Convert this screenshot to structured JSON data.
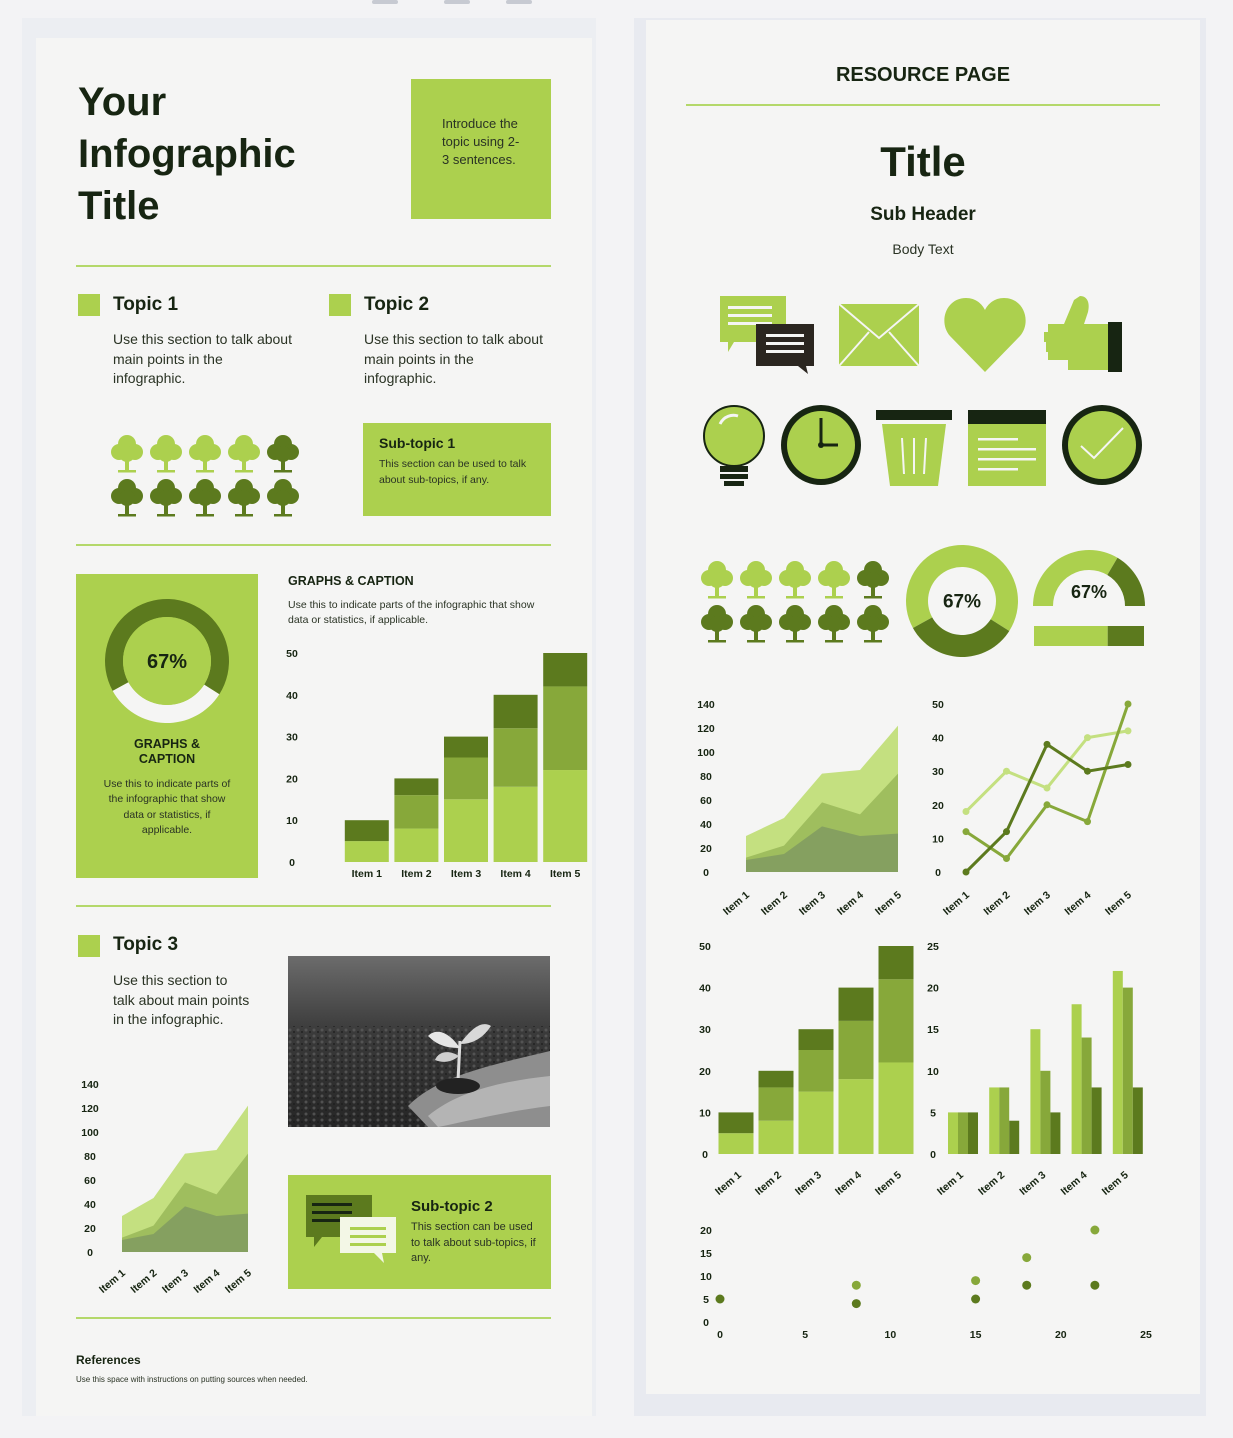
{
  "colors": {
    "light": "#acd04e",
    "mid": "#87a83a",
    "dark": "#5c7a1e",
    "darkest": "#172512",
    "pale": "#c4e080"
  },
  "left": {
    "title_lines": [
      "Your",
      "Infographic",
      "Title"
    ],
    "intro": "Introduce the topic using 2-3 sentences.",
    "topic1": {
      "title": "Topic 1",
      "text": "Use this section to talk about main points in the infographic."
    },
    "topic2": {
      "title": "Topic 2",
      "text": "Use this section to talk about main points in the infographic."
    },
    "subtopic1": {
      "title": "Sub-topic 1",
      "text": "This section can be used to talk about sub-topics, if any."
    },
    "graphs_box": {
      "percent": "67%",
      "title": "GRAPHS & CAPTION",
      "text": "Use this to indicate parts of the infographic that show data or statistics, if applicable."
    },
    "graphs_caption": {
      "title": "GRAPHS & CAPTION",
      "text": "Use this to indicate parts of the infographic that show data or statistics, if applicable."
    },
    "topic3": {
      "title": "Topic 3",
      "text": "Use this section to talk about main points in the infographic."
    },
    "photo_icon": "seedling-photo",
    "subtopic2": {
      "title": "Sub-topic 2",
      "text": "This section can be used to talk about sub-topics, if any."
    },
    "references": {
      "title": "References",
      "text": "Use this space with instructions on putting sources when needed."
    }
  },
  "right": {
    "heading": "RESOURCE PAGE",
    "title": "Title",
    "subheader": "Sub Header",
    "body": "Body Text",
    "icons": [
      "chat-bubbles-icon",
      "envelope-icon",
      "heart-icon",
      "thumbs-up-icon",
      "lightbulb-icon",
      "clock-icon",
      "trash-bin-icon",
      "notepad-icon",
      "checkmark-circle-icon"
    ],
    "donut_percent": "67%",
    "gauge_percent": "67%"
  },
  "trees": {
    "row1": [
      "light",
      "light",
      "light",
      "light",
      "dark"
    ],
    "row2": [
      "dark",
      "dark",
      "dark",
      "dark",
      "dark"
    ]
  },
  "chart_data": [
    {
      "id": "left-donut",
      "type": "pie",
      "values": [
        67,
        33
      ],
      "label": "67%"
    },
    {
      "id": "left-stacked-bar",
      "type": "bar",
      "stacked": true,
      "categories": [
        "Item 1",
        "Item 2",
        "Item 3",
        "Item 4",
        "Item 5"
      ],
      "series": [
        {
          "values": [
            5,
            8,
            15,
            18,
            22
          ]
        },
        {
          "values": [
            0,
            8,
            10,
            14,
            20
          ]
        },
        {
          "values": [
            5,
            4,
            5,
            8,
            8
          ]
        }
      ],
      "yticks": [
        0,
        10,
        20,
        30,
        40,
        50
      ],
      "ylim": [
        0,
        50
      ]
    },
    {
      "id": "left-area",
      "type": "area",
      "categories": [
        "Item 1",
        "Item 2",
        "Item 3",
        "Item 4",
        "Item 5"
      ],
      "series": [
        {
          "values": [
            30,
            45,
            82,
            85,
            122
          ]
        },
        {
          "values": [
            12,
            22,
            58,
            48,
            82
          ]
        },
        {
          "values": [
            10,
            15,
            38,
            30,
            32
          ]
        }
      ],
      "yticks": [
        0,
        20,
        40,
        60,
        80,
        100,
        120,
        140
      ],
      "ylim": [
        0,
        140
      ]
    },
    {
      "id": "right-donut",
      "type": "pie",
      "values": [
        67,
        33
      ],
      "label": "67%"
    },
    {
      "id": "right-gauge",
      "type": "pie",
      "values": [
        67,
        33
      ],
      "label": "67%"
    },
    {
      "id": "right-area",
      "type": "area",
      "categories": [
        "Item 1",
        "Item 2",
        "Item 3",
        "Item 4",
        "Item 5"
      ],
      "series": [
        {
          "values": [
            30,
            45,
            82,
            85,
            122
          ]
        },
        {
          "values": [
            12,
            22,
            58,
            48,
            82
          ]
        },
        {
          "values": [
            10,
            15,
            38,
            30,
            32
          ]
        }
      ],
      "yticks": [
        0,
        20,
        40,
        60,
        80,
        100,
        120,
        140
      ],
      "ylim": [
        0,
        140
      ]
    },
    {
      "id": "right-line",
      "type": "line",
      "categories": [
        "Item 1",
        "Item 2",
        "Item 3",
        "Item 4",
        "Item 5"
      ],
      "series": [
        {
          "values": [
            18,
            30,
            25,
            40,
            42
          ]
        },
        {
          "values": [
            12,
            4,
            20,
            15,
            50
          ]
        },
        {
          "values": [
            0,
            12,
            38,
            30,
            32
          ]
        }
      ],
      "yticks": [
        0,
        10,
        20,
        30,
        40,
        50
      ],
      "ylim": [
        0,
        50
      ]
    },
    {
      "id": "right-stacked-bar",
      "type": "bar",
      "stacked": true,
      "categories": [
        "Item 1",
        "Item 2",
        "Item 3",
        "Item 4",
        "Item 5"
      ],
      "series": [
        {
          "values": [
            5,
            8,
            15,
            18,
            22
          ]
        },
        {
          "values": [
            0,
            8,
            10,
            14,
            20
          ]
        },
        {
          "values": [
            5,
            4,
            5,
            8,
            8
          ]
        }
      ],
      "yticks": [
        0,
        10,
        20,
        30,
        40,
        50
      ],
      "ylim": [
        0,
        50
      ]
    },
    {
      "id": "right-grouped-bar",
      "type": "bar",
      "categories": [
        "Item 1",
        "Item 2",
        "Item 3",
        "Item 4",
        "Item 5"
      ],
      "series": [
        {
          "values": [
            5,
            8,
            15,
            18,
            22
          ]
        },
        {
          "values": [
            5,
            8,
            10,
            14,
            20
          ]
        },
        {
          "values": [
            5,
            4,
            5,
            8,
            8
          ]
        }
      ],
      "yticks": [
        0,
        5,
        10,
        15,
        20,
        25
      ],
      "ylim": [
        0,
        25
      ]
    },
    {
      "id": "right-scatter",
      "type": "scatter",
      "points": [
        [
          0,
          5
        ],
        [
          8,
          8
        ],
        [
          8,
          4
        ],
        [
          15,
          9
        ],
        [
          15,
          5
        ],
        [
          18,
          14
        ],
        [
          18,
          8
        ],
        [
          22,
          20
        ],
        [
          22,
          8
        ]
      ],
      "xticks": [
        0,
        5,
        10,
        15,
        20,
        25
      ],
      "yticks": [
        0,
        5,
        10,
        15,
        20
      ],
      "xlim": [
        0,
        25
      ],
      "ylim": [
        0,
        20
      ]
    }
  ]
}
